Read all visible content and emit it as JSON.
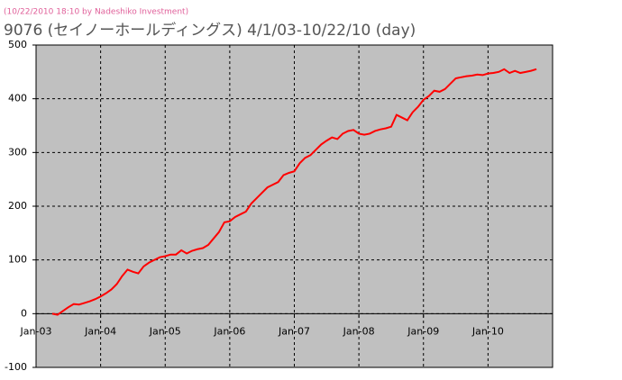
{
  "chart_data": {
    "type": "line",
    "subtitle": "(10/22/2010 18:10 by Nadeshiko Investment)",
    "title": "9076 (セイノーホールディングス) 4/1/03-10/22/10 (day)",
    "x": [
      "2003-04",
      "2003-05",
      "2003-06",
      "2003-07",
      "2003-08",
      "2003-09",
      "2003-10",
      "2003-11",
      "2003-12",
      "2004-01",
      "2004-02",
      "2004-03",
      "2004-04",
      "2004-05",
      "2004-06",
      "2004-07",
      "2004-08",
      "2004-09",
      "2004-10",
      "2004-11",
      "2004-12",
      "2005-01",
      "2005-02",
      "2005-03",
      "2005-04",
      "2005-05",
      "2005-06",
      "2005-07",
      "2005-08",
      "2005-09",
      "2005-10",
      "2005-11",
      "2005-12",
      "2006-01",
      "2006-02",
      "2006-03",
      "2006-04",
      "2006-05",
      "2006-06",
      "2006-07",
      "2006-08",
      "2006-09",
      "2006-10",
      "2006-11",
      "2006-12",
      "2007-01",
      "2007-02",
      "2007-03",
      "2007-04",
      "2007-05",
      "2007-06",
      "2007-07",
      "2007-08",
      "2007-09",
      "2007-10",
      "2007-11",
      "2007-12",
      "2008-01",
      "2008-02",
      "2008-03",
      "2008-04",
      "2008-05",
      "2008-06",
      "2008-07",
      "2008-08",
      "2008-09",
      "2008-10",
      "2008-11",
      "2008-12",
      "2009-01",
      "2009-02",
      "2009-03",
      "2009-04",
      "2009-05",
      "2009-06",
      "2009-07",
      "2009-08",
      "2009-09",
      "2009-10",
      "2009-11",
      "2009-12",
      "2010-01",
      "2010-02",
      "2010-03",
      "2010-04",
      "2010-05",
      "2010-06",
      "2010-07",
      "2010-08",
      "2010-09",
      "2010-10"
    ],
    "series": [
      {
        "color": "#ff0000",
        "values": [
          0,
          -2,
          5,
          12,
          18,
          17,
          20,
          23,
          27,
          32,
          38,
          45,
          55,
          70,
          82,
          78,
          75,
          88,
          95,
          100,
          105,
          107,
          110,
          110,
          118,
          112,
          117,
          120,
          122,
          128,
          140,
          152,
          170,
          172,
          180,
          185,
          190,
          205,
          215,
          225,
          235,
          240,
          245,
          258,
          262,
          265,
          280,
          290,
          295,
          305,
          315,
          322,
          328,
          325,
          335,
          340,
          342,
          335,
          333,
          335,
          340,
          343,
          345,
          348,
          370,
          365,
          360,
          375,
          385,
          398,
          405,
          415,
          413,
          418,
          428,
          438,
          440,
          442,
          443,
          445,
          444,
          447,
          448,
          450,
          455,
          448,
          452,
          448,
          450,
          452,
          455
        ]
      }
    ],
    "xlim": [
      "2003-01",
      "2011-01"
    ],
    "xticks": [
      {
        "value": "2003-01",
        "label": "Jan-03"
      },
      {
        "value": "2004-01",
        "label": "Jan-04"
      },
      {
        "value": "2005-01",
        "label": "Jan-05"
      },
      {
        "value": "2006-01",
        "label": "Jan-06"
      },
      {
        "value": "2007-01",
        "label": "Jan-07"
      },
      {
        "value": "2008-01",
        "label": "Jan-08"
      },
      {
        "value": "2009-01",
        "label": "Jan-09"
      },
      {
        "value": "2010-01",
        "label": "Jan-10"
      }
    ],
    "ylim": [
      -100,
      500
    ],
    "yticks": [
      -100,
      0,
      100,
      200,
      300,
      400,
      500
    ],
    "grid": true,
    "background": "#c0c0c0"
  }
}
